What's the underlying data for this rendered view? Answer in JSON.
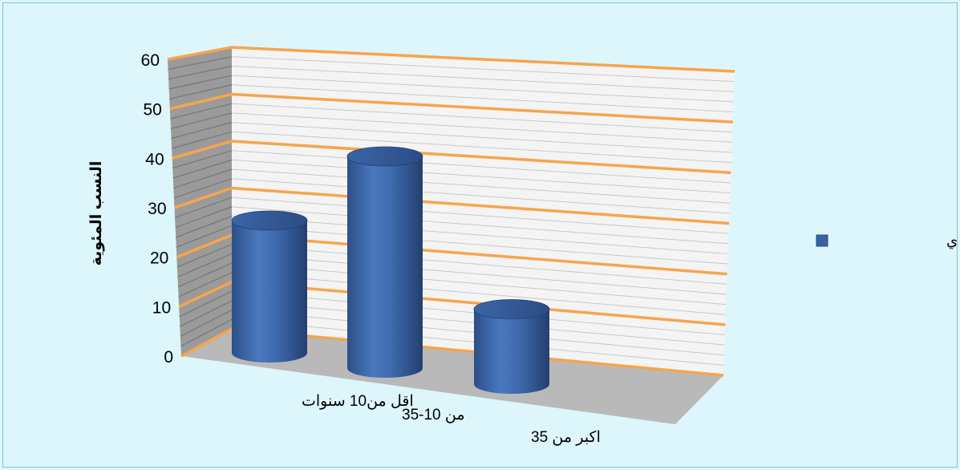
{
  "chart_data": {
    "type": "bar",
    "categories": [
      "اقل من10 سنوات",
      "من 10-35",
      "اكبر من 35"
    ],
    "series": [
      {
        "name": "التركيب العمري",
        "values": [
          30,
          48,
          17
        ]
      }
    ],
    "ylabel": "النسب المئوية",
    "xlabel": "",
    "ylim": [
      0,
      60
    ],
    "yticks": [
      0,
      10,
      20,
      30,
      40,
      50,
      60
    ],
    "grid": true,
    "legend_position": "right",
    "bar_shape": "cylinder",
    "colors": {
      "bar": "#3a62a3",
      "major_gridline": "#f7a44d",
      "minor_gridline": "#c8c8c8",
      "floor": "#b9b9b9",
      "side_wall": "#9a9a9a",
      "back_wall": "#f4f4f4",
      "background": "#ddf6fb"
    }
  }
}
